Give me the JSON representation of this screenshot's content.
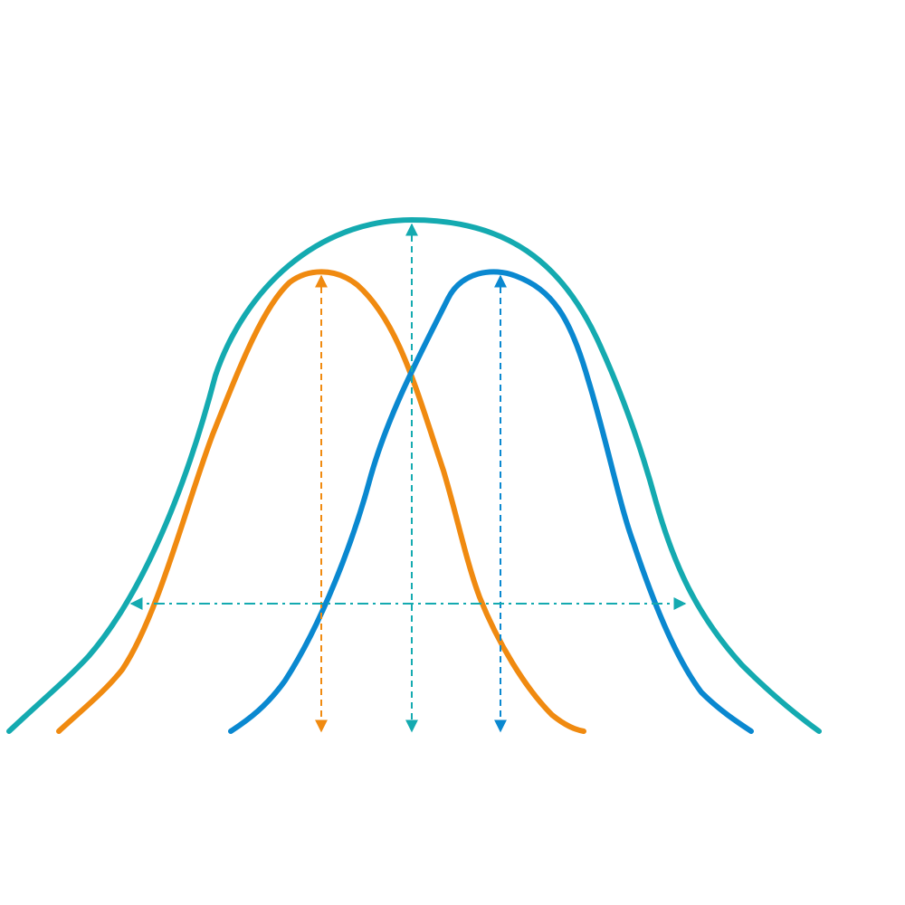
{
  "diagram": {
    "type": "overlapping-bell-curves",
    "colors": {
      "combined": "#14aab0",
      "left": "#f08a10",
      "right": "#0a88d0"
    },
    "curves": [
      {
        "id": "combined",
        "color_key": "combined"
      },
      {
        "id": "left",
        "color_key": "left"
      },
      {
        "id": "right",
        "color_key": "right"
      }
    ],
    "markers": [
      {
        "id": "left-peak-height",
        "style": "dashed",
        "direction": "vertical",
        "color_key": "left"
      },
      {
        "id": "combined-peak-height",
        "style": "dashed",
        "direction": "vertical",
        "color_key": "combined"
      },
      {
        "id": "right-peak-height",
        "style": "dashed",
        "direction": "vertical",
        "color_key": "right"
      },
      {
        "id": "combined-width",
        "style": "dash-dot",
        "direction": "horizontal",
        "color_key": "combined"
      }
    ]
  }
}
